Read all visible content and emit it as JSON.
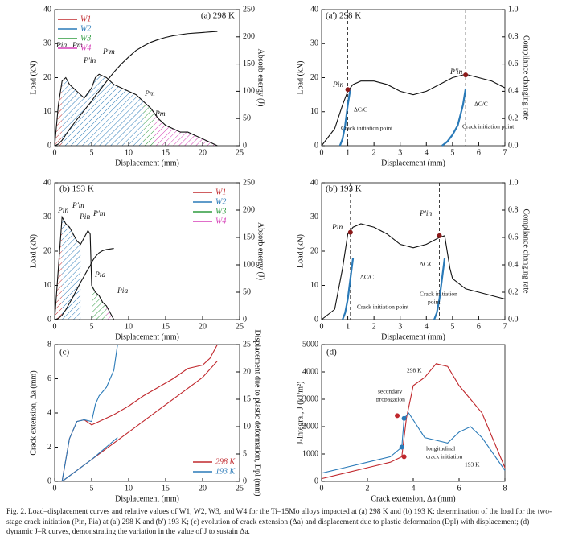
{
  "chart_data": [
    {
      "type": "line",
      "label": "(a) 298 K",
      "xlabel": "Displacement (mm)",
      "ylabel": "Load (kN)",
      "y2label": "Absorb energy (J)",
      "xlim": [
        0,
        25
      ],
      "xticks": [
        0,
        5,
        10,
        15,
        20,
        25
      ],
      "ylim": [
        0,
        40
      ],
      "yticks": [
        0,
        10,
        20,
        30,
        40
      ],
      "y2lim": [
        0,
        250
      ],
      "y2ticks": [
        0,
        50,
        100,
        150,
        200,
        250
      ],
      "legend": "upper left",
      "series": [
        {
          "color": "#111111",
          "x": [
            0,
            0.5,
            1,
            1.5,
            2,
            3,
            4,
            5,
            5.5,
            6,
            7,
            8,
            9,
            10,
            11,
            12,
            13,
            14,
            15,
            16,
            17,
            18,
            19,
            20,
            21,
            22
          ],
          "values": [
            0,
            12,
            19,
            20,
            18,
            16,
            14,
            17,
            20,
            21,
            20,
            18,
            17,
            16,
            15,
            13,
            11,
            8,
            6,
            5,
            4,
            4,
            3,
            2,
            1,
            0
          ]
        },
        {
          "color": "#111111",
          "axis": "y2",
          "x": [
            0,
            0.5,
            1,
            1.5,
            2,
            3,
            4,
            5,
            5.5,
            6,
            7,
            8,
            9,
            10,
            11,
            12,
            13,
            14,
            15,
            16,
            17,
            18,
            19,
            20,
            21,
            22
          ],
          "values": [
            0,
            3,
            10,
            20,
            30,
            48,
            65,
            82,
            92,
            100,
            118,
            135,
            150,
            163,
            175,
            183,
            190,
            195,
            199,
            202,
            204,
            206,
            207,
            208,
            209,
            210
          ]
        }
      ],
      "regions": [
        {
          "name": "W1",
          "color": "#c0282d",
          "x": [
            0,
            1
          ]
        },
        {
          "name": "W2",
          "color": "#2a7ab8",
          "x": [
            1,
            12
          ]
        },
        {
          "name": "W3",
          "color": "#2e9b3e",
          "x": [
            12,
            13.5
          ]
        },
        {
          "name": "W4",
          "color": "#d63fb7",
          "x": [
            13.5,
            22
          ]
        }
      ],
      "annotations": [
        "Pia",
        "Pm",
        "P′in",
        "P′m",
        "Pm",
        "Pm"
      ]
    },
    {
      "type": "line",
      "label": "(a') 298 K",
      "xlabel": "Displacement (mm)",
      "ylabel": "Load (kN)",
      "y2label": "Compliance changing rate",
      "xlim": [
        0,
        7
      ],
      "xticks": [
        0,
        1,
        2,
        3,
        4,
        5,
        6,
        7
      ],
      "ylim": [
        0,
        40
      ],
      "yticks": [
        0,
        10,
        20,
        30,
        40
      ],
      "y2lim": [
        0,
        1
      ],
      "y2ticks": [
        {
          "value": 0,
          "label": "0.0"
        },
        0.2,
        0.4,
        0.6,
        0.8,
        {
          "value": 1,
          "label": "1.0"
        }
      ],
      "vlines": true,
      "series": [
        {
          "color": "#111111",
          "x": [
            0,
            0.5,
            0.8,
            1,
            1.2,
            1.5,
            2,
            2.5,
            3,
            3.5,
            4,
            4.5,
            5,
            5.5,
            6,
            6.5,
            7
          ],
          "values": [
            0,
            5,
            12,
            16,
            18,
            19,
            19,
            18,
            16,
            15,
            16,
            18,
            20,
            21,
            20,
            19,
            17
          ]
        },
        {
          "color": "#2a7ab8",
          "axis": "y2",
          "x": [
            0.7,
            0.8,
            0.9,
            1.0,
            1.1
          ],
          "values": [
            0,
            0.05,
            0.15,
            0.3,
            0.42
          ]
        },
        {
          "color": "#2a7ab8",
          "axis": "y2",
          "x": [
            4.6,
            4.8,
            5.0,
            5.2,
            5.4,
            5.5
          ],
          "values": [
            0,
            0.03,
            0.08,
            0.15,
            0.3,
            0.42
          ]
        }
      ],
      "points": [
        {
          "color": "#8b1a1a",
          "x": [
            1,
            5.5
          ],
          "values": [
            16.5,
            20.8
          ]
        }
      ],
      "annotations": [
        "Pin",
        "P′in",
        "ΔC/C",
        "Crack initiation point",
        "ΔC/C",
        "Crack initiation point"
      ]
    },
    {
      "type": "line",
      "label": "(b) 193 K",
      "xlabel": "Displacement (mm)",
      "ylabel": "Load (kN)",
      "y2label": "Absorb energy (J)",
      "xlim": [
        0,
        25
      ],
      "xticks": [
        0,
        5,
        10,
        15,
        20,
        25
      ],
      "ylim": [
        0,
        40
      ],
      "yticks": [
        0,
        10,
        20,
        30,
        40
      ],
      "y2lim": [
        0,
        250
      ],
      "y2ticks": [
        0,
        50,
        100,
        150,
        200,
        250
      ],
      "legend": "upper right",
      "series": [
        {
          "color": "#111111",
          "x": [
            0,
            0.5,
            1,
            1.5,
            2,
            2.5,
            3,
            3.5,
            4,
            4.5,
            4.8,
            5,
            5.5,
            6,
            6.5,
            7,
            7.5,
            8
          ],
          "values": [
            0,
            15,
            30,
            28,
            27,
            25,
            23,
            22,
            24,
            26,
            25,
            10,
            8,
            7,
            5,
            4,
            2,
            0
          ]
        },
        {
          "color": "#111111",
          "axis": "y2",
          "x": [
            0,
            0.5,
            1,
            1.5,
            2,
            2.5,
            3,
            3.5,
            4,
            4.5,
            4.8,
            5,
            5.5,
            6,
            6.5,
            7,
            7.5,
            8
          ],
          "values": [
            0,
            2,
            8,
            18,
            30,
            42,
            55,
            68,
            80,
            92,
            98,
            105,
            115,
            122,
            126,
            128,
            129,
            130
          ]
        }
      ],
      "regions": [
        {
          "name": "W1",
          "color": "#c0282d",
          "x": [
            0,
            1
          ]
        },
        {
          "name": "W2",
          "color": "#2a7ab8",
          "x": [
            1,
            3.5
          ]
        },
        {
          "name": "W3",
          "color": "#2e9b3e",
          "x": [
            5,
            7
          ]
        },
        {
          "name": "W4",
          "color": "#d63fb7",
          "x": [
            7,
            8
          ]
        }
      ],
      "annotations": [
        "Pin",
        "P′m",
        "Pin",
        "P′m",
        "Pia",
        "Pia"
      ]
    },
    {
      "type": "line",
      "label": "(b') 193 K",
      "xlabel": "Displacement (mm)",
      "ylabel": "Load (kN)",
      "y2label": "Compliance changing rate",
      "xlim": [
        0,
        7
      ],
      "xticks": [
        0,
        1,
        2,
        3,
        4,
        5,
        6,
        7
      ],
      "ylim": [
        0,
        40
      ],
      "yticks": [
        0,
        10,
        20,
        30,
        40
      ],
      "y2lim": [
        0,
        1
      ],
      "y2ticks": [
        {
          "value": 0,
          "label": "0.0"
        },
        0.2,
        0.4,
        0.6,
        0.8,
        {
          "value": 1,
          "label": "1.0"
        }
      ],
      "vlines": true,
      "series": [
        {
          "color": "#111111",
          "x": [
            0,
            0.5,
            0.8,
            1,
            1.2,
            1.5,
            2,
            2.5,
            3,
            3.5,
            4,
            4.5,
            4.7,
            4.9,
            5,
            5.5,
            6,
            6.5,
            7
          ],
          "values": [
            0,
            3,
            15,
            25,
            27,
            28,
            27,
            25,
            22,
            21,
            22,
            24,
            24.5,
            15,
            12,
            9,
            8,
            7,
            6
          ]
        },
        {
          "color": "#2a7ab8",
          "axis": "y2",
          "x": [
            0.8,
            0.9,
            1.0,
            1.1,
            1.2
          ],
          "values": [
            0,
            0.05,
            0.15,
            0.3,
            0.45
          ]
        },
        {
          "color": "#2a7ab8",
          "axis": "y2",
          "x": [
            4.3,
            4.4,
            4.5,
            4.6,
            4.7
          ],
          "values": [
            0,
            0.05,
            0.15,
            0.3,
            0.45
          ]
        }
      ],
      "points": [
        {
          "color": "#8b1a1a",
          "x": [
            1.1,
            4.5
          ],
          "values": [
            25.5,
            24.5
          ]
        }
      ],
      "annotations": [
        "Pin",
        "P′in",
        "ΔC/C",
        "Crack initiation point",
        "ΔC/C",
        "Crack initiation",
        "point"
      ]
    },
    {
      "type": "line",
      "label": "(c)",
      "xlabel": "Displacement (mm)",
      "ylabel": "Crack extension, Δa (mm)",
      "y2label": "Displacement due to plastic deformation, Dpl (mm)",
      "xlim": [
        0,
        25
      ],
      "xticks": [
        0,
        5,
        10,
        15,
        20,
        25
      ],
      "ylim": [
        0,
        8
      ],
      "yticks": [
        0,
        2,
        4,
        6,
        8
      ],
      "y2lim": [
        0,
        25
      ],
      "y2ticks": [
        0,
        5,
        10,
        15,
        20,
        25
      ],
      "legend": "lower right",
      "series": [
        {
          "name": "298 K",
          "color": "#c0282d",
          "x": [
            1,
            2,
            3,
            4,
            5,
            6,
            8,
            10,
            12,
            14,
            16,
            18,
            20,
            21,
            22
          ],
          "values": [
            0,
            2.5,
            3.5,
            3.6,
            3.3,
            3.5,
            3.9,
            4.4,
            5,
            5.5,
            6,
            6.6,
            6.8,
            7.2,
            8
          ]
        },
        {
          "name": "193 K",
          "color": "#2a7ab8",
          "x": [
            1,
            2,
            3,
            4,
            5,
            5.5,
            6,
            7,
            8,
            8.5
          ],
          "values": [
            0,
            2.5,
            3.5,
            3.6,
            3.5,
            4.5,
            5,
            5.5,
            6.5,
            8
          ]
        },
        {
          "color": "#c0282d",
          "axis": "y2",
          "x": [
            1,
            5,
            10,
            15,
            20,
            22
          ],
          "values": [
            0,
            4,
            9,
            14,
            19,
            22
          ]
        },
        {
          "color": "#2a7ab8",
          "axis": "y2",
          "x": [
            1,
            3,
            5,
            8.5
          ],
          "values": [
            0,
            2,
            4,
            8
          ]
        }
      ]
    },
    {
      "type": "line",
      "label": "(d)",
      "xlabel": "Crack extension, Δa (mm)",
      "ylabel": "J-Integral, J (kJ/m²)",
      "xlim": [
        0,
        8
      ],
      "xticks": [
        0,
        2,
        4,
        6,
        8
      ],
      "ylim": [
        0,
        5000
      ],
      "yticks": [
        0,
        1000,
        2000,
        3000,
        4000,
        5000
      ],
      "series": [
        {
          "color": "#c0282d",
          "x": [
            0,
            1,
            2,
            3,
            3.5,
            3.7,
            4,
            4.5,
            5,
            5.5,
            6,
            6.5,
            7,
            7.5,
            8
          ],
          "values": [
            100,
            300,
            500,
            700,
            900,
            2300,
            3500,
            3800,
            4300,
            4200,
            3500,
            3000,
            2500,
            1500,
            500
          ]
        },
        {
          "color": "#2a7ab8",
          "x": [
            0,
            1,
            2,
            3,
            3.5,
            3.6,
            3.8,
            4.5,
            5,
            5.5,
            6,
            6.5,
            7,
            7.5,
            8
          ],
          "values": [
            300,
            500,
            700,
            900,
            1250,
            2300,
            2500,
            1600,
            1500,
            1400,
            1800,
            2000,
            1600,
            1000,
            400
          ]
        }
      ],
      "points": [
        {
          "color": "#c0282d",
          "x": [
            3.3,
            3.6
          ],
          "values": [
            2400,
            900
          ]
        },
        {
          "color": "#2a7ab8",
          "x": [
            3.5,
            3.6
          ],
          "values": [
            1250,
            2300
          ]
        }
      ],
      "annotations": [
        "298 K",
        "secondary",
        "propagation",
        "longitudinal",
        "crack initiation",
        "193 K"
      ]
    }
  ],
  "caption": "Fig. 2. Load–displacement curves and relative values of W1, W2, W3, and W4 for the Ti–15Mo alloys impacted at (a) 298 K and (b) 193 K; determination of the load for the two-stage crack initiation (Pin, Pia) at (a') 298 K and (b') 193 K; (c) evolution of crack extension (Δa) and displacement due to plastic deformation (Dpl) with displacement; (d) dynamic J–R curves, demonstrating the variation in the value of J to sustain Δa."
}
